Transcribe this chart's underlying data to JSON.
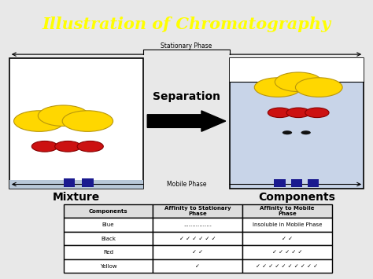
{
  "title": "Illustration of Chromatography",
  "title_color": "#FFFF00",
  "title_bg": "#1A1A9F",
  "title_fontsize": 15,
  "mixture_label": "Mixture",
  "components_label": "Components",
  "separation_text": "Separation",
  "stationary_phase_label": "Stationary Phase",
  "mobile_phase_label": "Mobile Phase",
  "table_headers": [
    "Components",
    "Affinity to Stationary\nPhase",
    "Affinity to Mobile\nPhase"
  ],
  "table_rows": [
    [
      "Blue",
      "................",
      "Insoluble in Mobile Phase"
    ],
    [
      "Black",
      "✓ ✓ ✓ ✓ ✓ ✓",
      "✓ ✓"
    ],
    [
      "Red",
      "✓ ✓",
      "✓ ✓ ✓ ✓ ✓"
    ],
    [
      "Yellow",
      "✓",
      "✓ ✓ ✓ ✓ ✓ ✓ ✓ ✓ ✓ ✓"
    ]
  ],
  "bg_color": "#E8E8E8",
  "left_box_color": "#FFFFFF",
  "right_box_top_color": "#FFFFFF",
  "right_box_main_color": "#C8D4E8",
  "mobile_phase_strip_color": "#B8C8D8",
  "yellow_circle_color": "#FFD700",
  "yellow_circle_edge": "#B8960C",
  "red_circle_color": "#CC1111",
  "red_circle_edge": "#880000",
  "blue_rect_color": "#1A1A8F",
  "black_dot_color": "#111111",
  "arrow_color": "#000000"
}
